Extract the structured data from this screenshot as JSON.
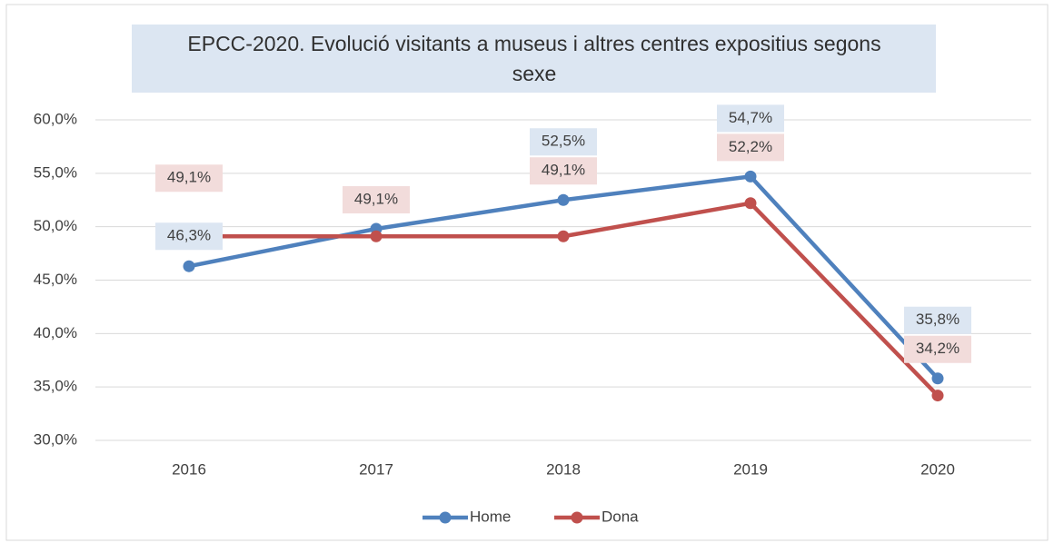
{
  "chart_data": {
    "type": "line",
    "title": [
      "EPCC-2020. Evolució visitants a museus i altres centres expositius segons",
      "sexe"
    ],
    "categories": [
      "2016",
      "2017",
      "2018",
      "2019",
      "2020"
    ],
    "series": [
      {
        "name": "Home",
        "color": "#4f81bd",
        "values": [
          46.3,
          49.8,
          52.5,
          54.7,
          35.8
        ],
        "value_labels": [
          "46,3%",
          null,
          "52,5%",
          "54,7%",
          "35,8%"
        ]
      },
      {
        "name": "Dona",
        "color": "#c0504d",
        "values": [
          49.1,
          49.1,
          49.1,
          52.2,
          34.2
        ],
        "value_labels": [
          "49,1%",
          "49,1%",
          "49,1%",
          "52,2%",
          "34,2%"
        ]
      }
    ],
    "ylim": [
      30,
      60
    ],
    "yticks": [
      {
        "value": 30,
        "label": "30,0%"
      },
      {
        "value": 35,
        "label": "35,0%"
      },
      {
        "value": 40,
        "label": "40,0%"
      },
      {
        "value": 45,
        "label": "45,0%"
      },
      {
        "value": 50,
        "label": "50,0%"
      },
      {
        "value": 55,
        "label": "55,0%"
      },
      {
        "value": 60,
        "label": "60,0%"
      }
    ],
    "grid": true,
    "legend": "bottom"
  }
}
